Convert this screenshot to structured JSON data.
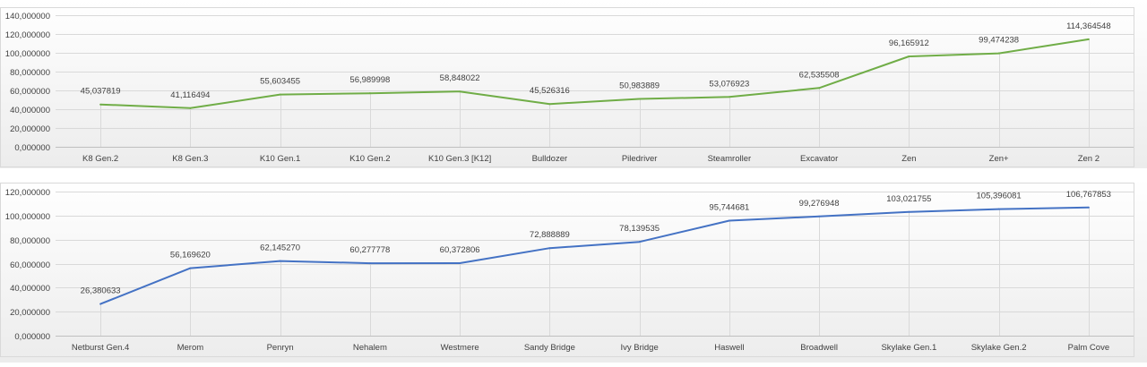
{
  "chart_data": [
    {
      "type": "line",
      "categories": [
        "K8 Gen.2",
        "K8 Gen.3",
        "K10 Gen.1",
        "K10 Gen.2",
        "K10 Gen.3 [K12]",
        "Bulldozer",
        "Piledriver",
        "Steamroller",
        "Excavator",
        "Zen",
        "Zen+",
        "Zen 2"
      ],
      "series": [
        {
          "values": [
            45.037819,
            41.116494,
            55.603455,
            56.989998,
            58.848022,
            45.526316,
            50.983889,
            53.076923,
            62.535508,
            96.165912,
            99.474238,
            114.364548
          ],
          "value_labels": [
            "45,037819",
            "41,116494",
            "55,603455",
            "56,989998",
            "58,848022",
            "45,526316",
            "50,983889",
            "53,076923",
            "62,535508",
            "96,165912",
            "99,474238",
            "114,364548"
          ]
        }
      ],
      "yticks": [
        0,
        20,
        40,
        60,
        80,
        100,
        120,
        140
      ],
      "ytick_labels": [
        "0,000000",
        "20,000000",
        "40,000000",
        "60,000000",
        "80,000000",
        "100,000000",
        "120,000000",
        "140,000000"
      ],
      "ylim": [
        0,
        140
      ],
      "title": "",
      "xlabel": "",
      "ylabel": "",
      "grid": true,
      "line_color": "#70ad47",
      "legend": "none"
    },
    {
      "type": "line",
      "categories": [
        "Netburst Gen.4",
        "Merom",
        "Penryn",
        "Nehalem",
        "Westmere",
        "Sandy Bridge",
        "Ivy Bridge",
        "Haswell",
        "Broadwell",
        "Skylake Gen.1",
        "Skylake Gen.2",
        "Palm Cove"
      ],
      "series": [
        {
          "values": [
            26.380633,
            56.16962,
            62.14527,
            60.277778,
            60.372806,
            72.888889,
            78.139535,
            95.744681,
            99.276948,
            103.021755,
            105.396081,
            106.767853
          ],
          "value_labels": [
            "26,380633",
            "56,169620",
            "62,145270",
            "60,277778",
            "60,372806",
            "72,888889",
            "78,139535",
            "95,744681",
            "99,276948",
            "103,021755",
            "105,396081",
            "106,767853"
          ]
        }
      ],
      "yticks": [
        0,
        20,
        40,
        60,
        80,
        100,
        120
      ],
      "ytick_labels": [
        "0,000000",
        "20,000000",
        "40,000000",
        "60,000000",
        "80,000000",
        "100,000000",
        "120,000000"
      ],
      "ylim": [
        0,
        120
      ],
      "title": "",
      "xlabel": "",
      "ylabel": "",
      "grid": true,
      "line_color": "#4472c4",
      "legend": "none"
    }
  ]
}
